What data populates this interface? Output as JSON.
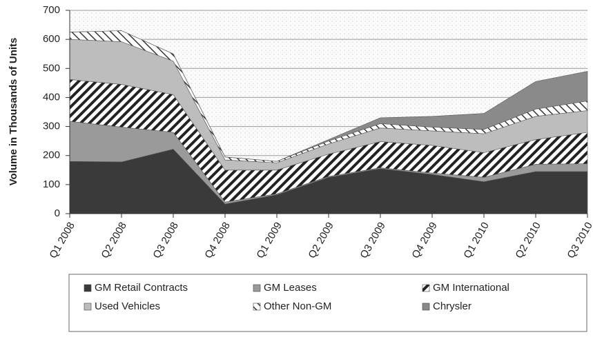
{
  "chart_data": {
    "type": "stacked_area",
    "y_label": "Volume in Thousands of Units",
    "categories": [
      "Q1 2008",
      "Q2 2008",
      "Q3 2008",
      "Q4 2008",
      "Q1 2009",
      "Q2 2009",
      "Q3 2009",
      "Q4 2009",
      "Q1 2010",
      "Q2 2010",
      "Q3 2010"
    ],
    "series": [
      {
        "name": "GM Retail Contracts",
        "color": "#3a3a3a",
        "values": [
          180,
          178,
          222,
          33,
          65,
          125,
          155,
          135,
          110,
          145,
          145
        ]
      },
      {
        "name": "GM Leases",
        "color": "#9a9a9a",
        "values": [
          138,
          120,
          58,
          7,
          3,
          3,
          3,
          5,
          15,
          25,
          27
        ]
      },
      {
        "name": "GM International",
        "color": "hatch-dark",
        "values": [
          144,
          147,
          130,
          110,
          82,
          77,
          90,
          95,
          85,
          85,
          108
        ]
      },
      {
        "name": "Used Vehicles",
        "color": "#bdbdbd",
        "values": [
          138,
          147,
          115,
          35,
          25,
          35,
          47,
          50,
          65,
          80,
          75
        ]
      },
      {
        "name": "Other Non-GM",
        "color": "hatch-light",
        "values": [
          25,
          38,
          25,
          10,
          5,
          10,
          15,
          13,
          15,
          25,
          33
        ]
      },
      {
        "name": "Chrysler",
        "color": "#8a8a8a",
        "values": [
          0,
          0,
          0,
          0,
          0,
          5,
          20,
          37,
          55,
          95,
          102
        ]
      }
    ],
    "ylim": [
      0,
      700
    ],
    "yticks": [
      0,
      100,
      200,
      300,
      400,
      500,
      600,
      700
    ],
    "grid": true
  }
}
